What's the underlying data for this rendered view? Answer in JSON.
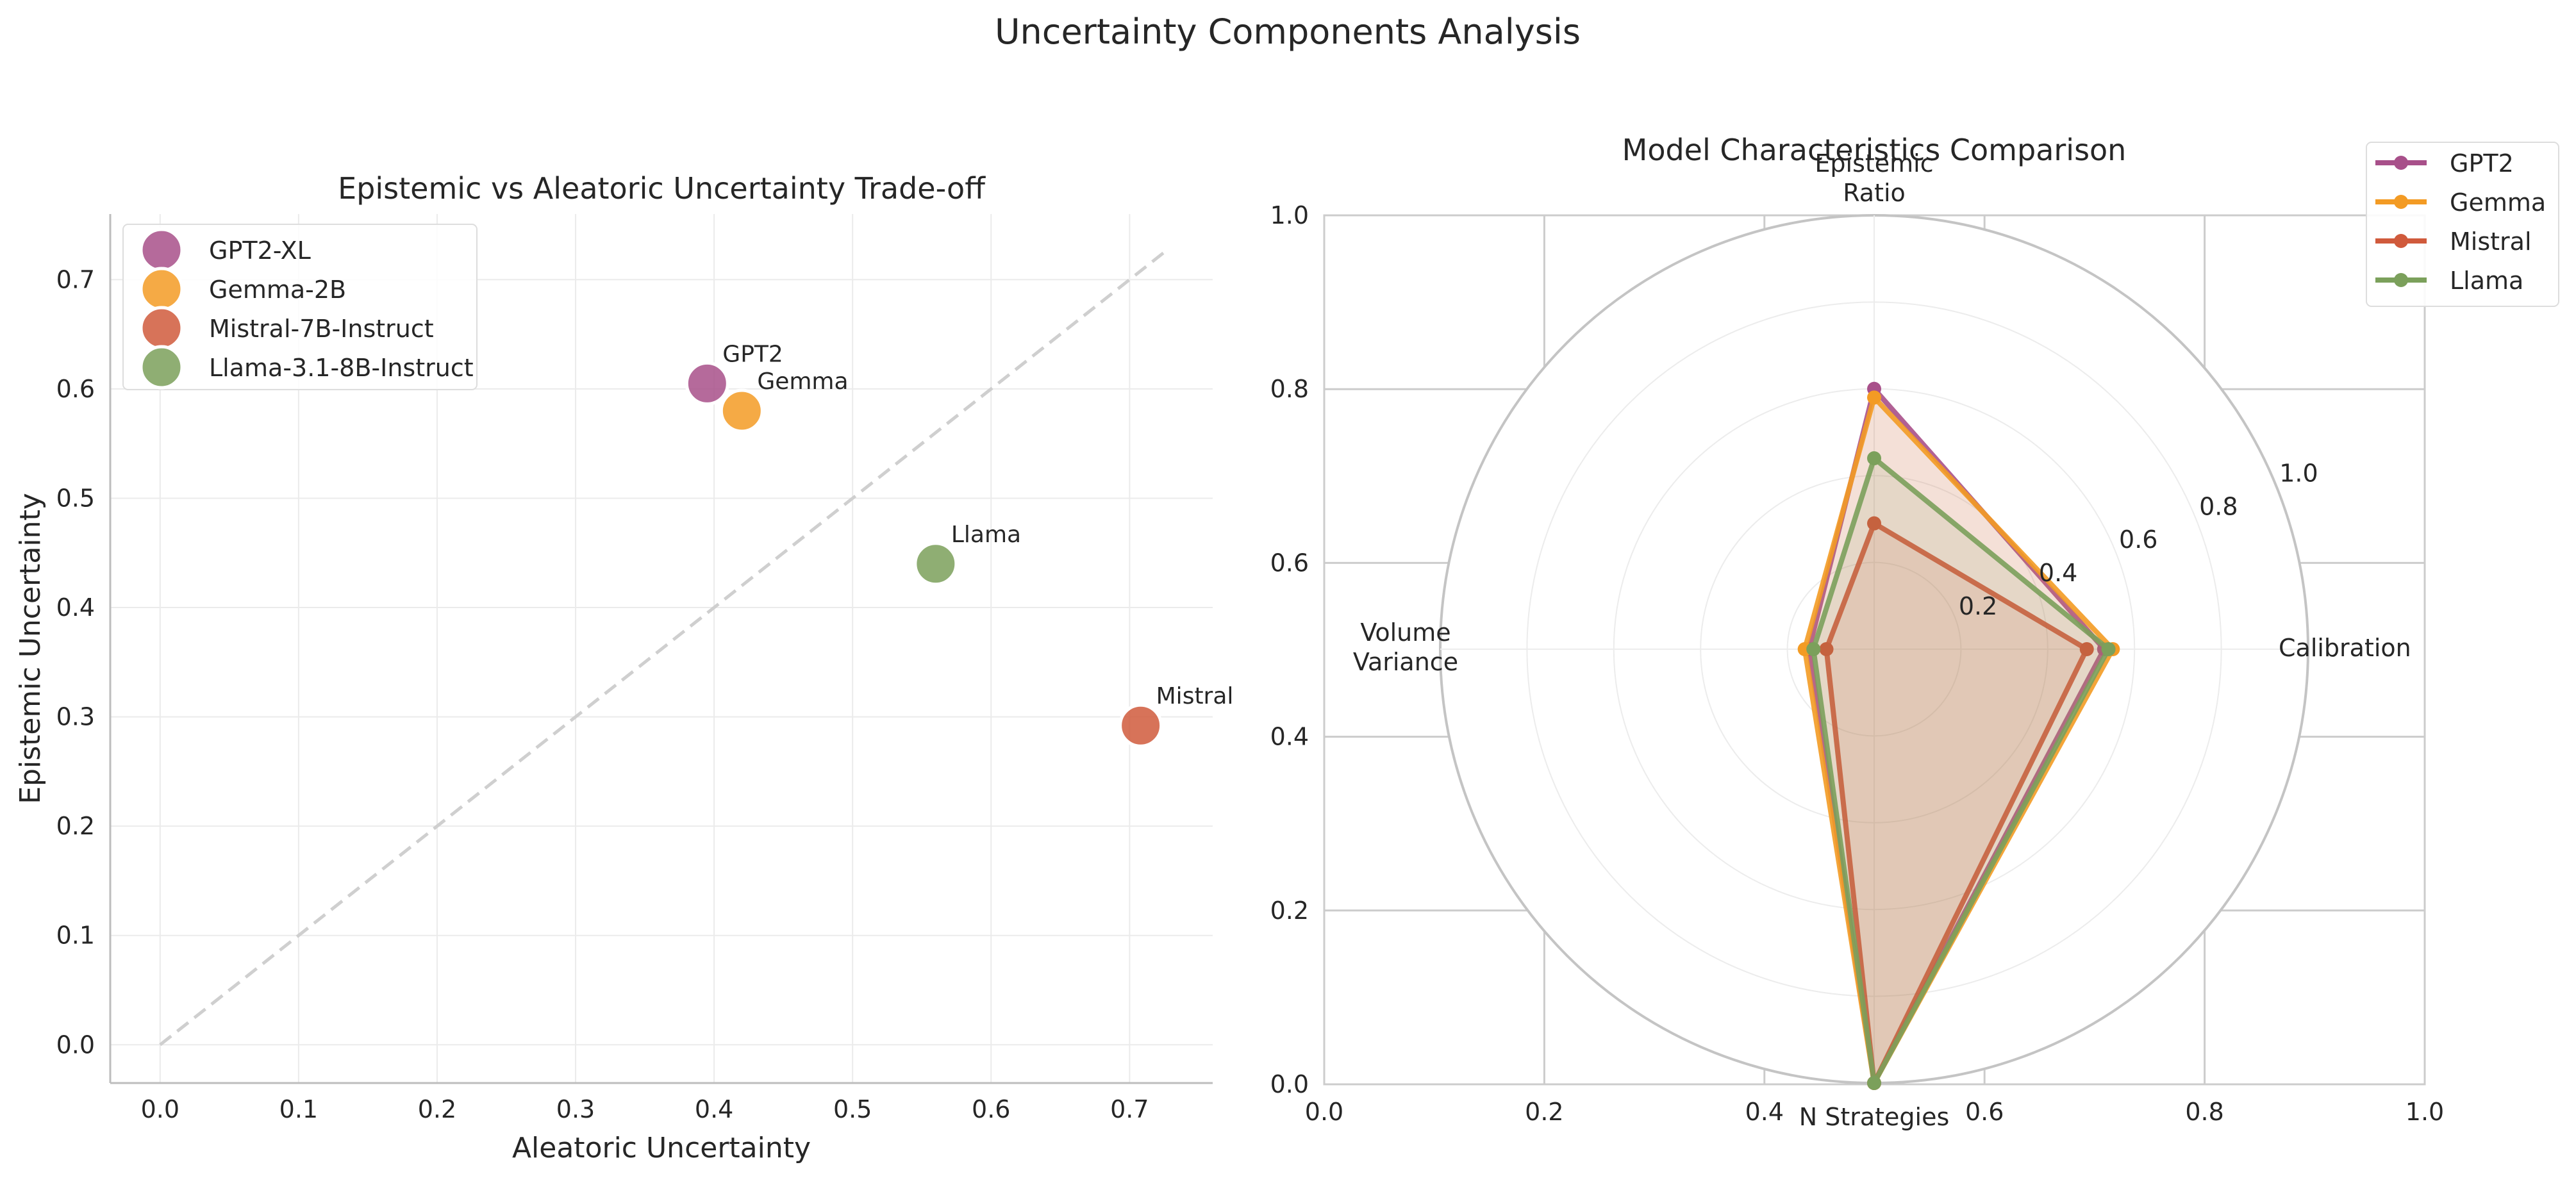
{
  "figure": {
    "title": "Uncertainty Components Analysis"
  },
  "chart_data": [
    {
      "type": "scatter",
      "title": "Epistemic vs Aleatoric Uncertainty Trade-off",
      "xlabel": "Aleatoric Uncertainty",
      "ylabel": "Epistemic Uncertainty",
      "xlim": [
        -0.036,
        0.76
      ],
      "ylim": [
        -0.035,
        0.76
      ],
      "xticks": [
        "0.0",
        "0.1",
        "0.2",
        "0.3",
        "0.4",
        "0.5",
        "0.6",
        "0.7"
      ],
      "yticks": [
        "0.0",
        "0.1",
        "0.2",
        "0.3",
        "0.4",
        "0.5",
        "0.6",
        "0.7"
      ],
      "grid": true,
      "legend_position": "top-left",
      "reference_line": {
        "style": "dashed",
        "color": "#cfcfcf",
        "from": [
          0,
          0
        ],
        "to": [
          0.725,
          0.725
        ]
      },
      "series": [
        {
          "name": "GPT2-XL",
          "label": "GPT2",
          "x": 0.395,
          "y": 0.605,
          "color": "#a8508a"
        },
        {
          "name": "Gemma-2B",
          "label": "Gemma",
          "x": 0.42,
          "y": 0.58,
          "color": "#f39b24"
        },
        {
          "name": "Mistral-7B-Instruct",
          "label": "Mistral",
          "x": 0.708,
          "y": 0.292,
          "color": "#d05a3c"
        },
        {
          "name": "Llama-3.1-8B-Instruct",
          "label": "Llama",
          "x": 0.56,
          "y": 0.44,
          "color": "#7ba05b"
        }
      ]
    },
    {
      "type": "radar",
      "title": "Model Characteristics Comparison",
      "axes": [
        {
          "label": [
            "Calibration"
          ]
        },
        {
          "label": [
            "Epistemic",
            "Ratio"
          ]
        },
        {
          "label": [
            "Volume",
            "Variance"
          ]
        },
        {
          "label": [
            "N Strategies"
          ]
        }
      ],
      "radial_ticks": [
        "0.2",
        "0.4",
        "0.6",
        "0.8",
        "1.0"
      ],
      "background_xticks": [
        "0.0",
        "0.2",
        "0.4",
        "0.6",
        "0.8",
        "1.0"
      ],
      "background_yticks": [
        "0.0",
        "0.2",
        "0.4",
        "0.6",
        "0.8",
        "1.0"
      ],
      "legend_position": "top-right",
      "series": [
        {
          "name": "GPT2",
          "color": "#a8508a",
          "values": [
            0.53,
            0.6,
            0.15,
            1.0
          ]
        },
        {
          "name": "Gemma",
          "color": "#f39b24",
          "values": [
            0.55,
            0.58,
            0.16,
            1.0
          ]
        },
        {
          "name": "Mistral",
          "color": "#d05a3c",
          "values": [
            0.49,
            0.29,
            0.11,
            1.0
          ]
        },
        {
          "name": "Llama",
          "color": "#7ba05b",
          "values": [
            0.54,
            0.44,
            0.14,
            1.0
          ]
        }
      ]
    }
  ]
}
